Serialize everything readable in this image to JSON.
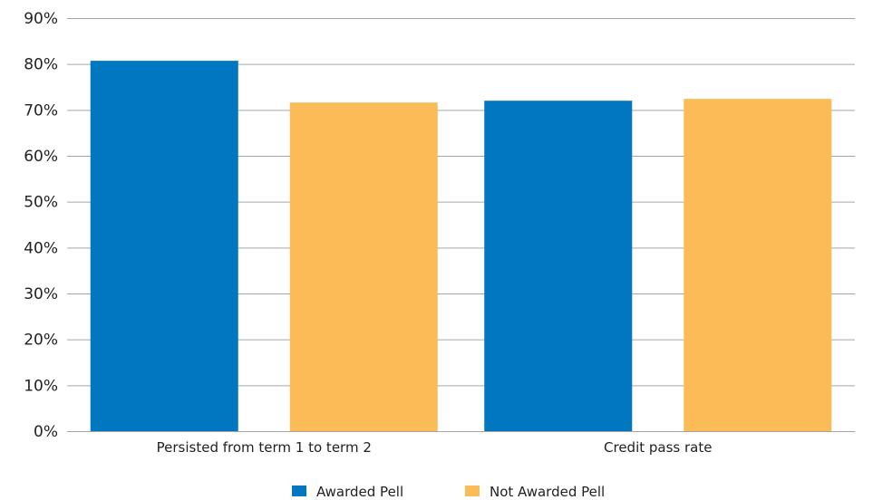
{
  "chart_data": {
    "type": "bar",
    "categories": [
      "Persisted from term 1 to term 2",
      "Credit pass rate"
    ],
    "series": [
      {
        "name": "Awarded Pell",
        "color": "#0077c0",
        "values": [
          80.7,
          72.0
        ]
      },
      {
        "name": "Not Awarded Pell",
        "color": "#fbbb57",
        "values": [
          71.6,
          72.4
        ]
      }
    ],
    "y_ticks": [
      "0%",
      "10%",
      "20%",
      "30%",
      "40%",
      "50%",
      "60%",
      "70%",
      "80%",
      "90%"
    ],
    "ylim": [
      0,
      90
    ],
    "grid": true,
    "legend_position": "bottom-center",
    "title": "",
    "xlabel": "",
    "ylabel": ""
  }
}
